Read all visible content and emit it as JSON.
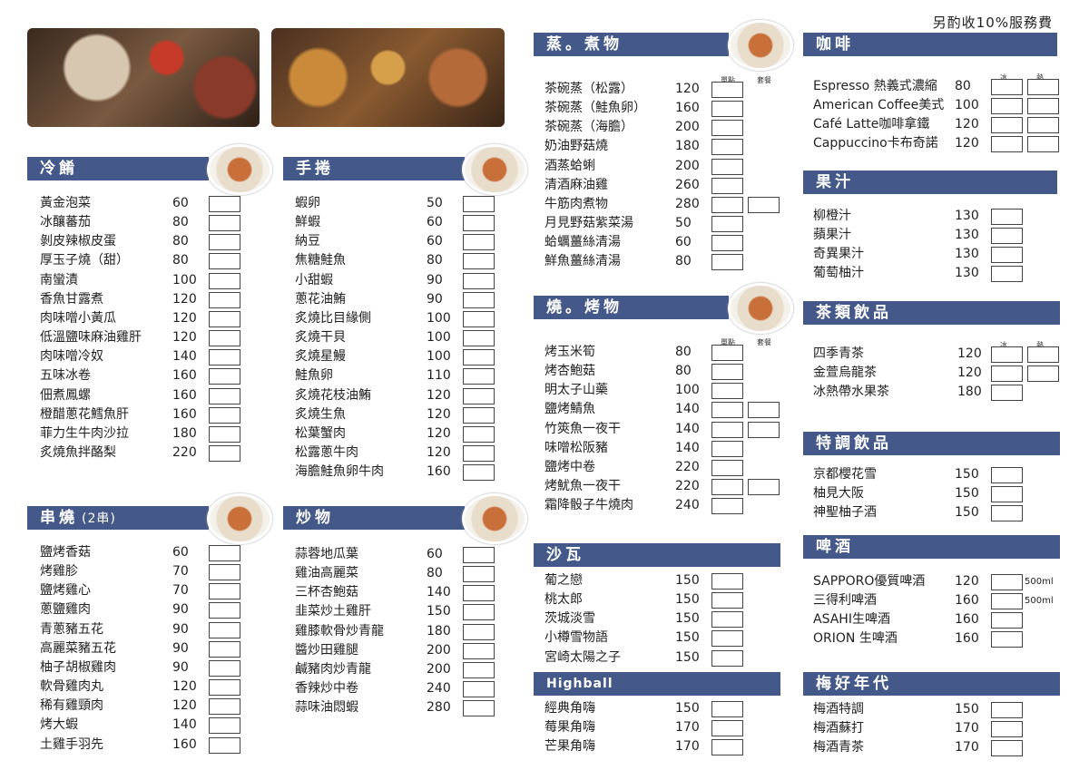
{
  "service_note": "另酌收10%服務費",
  "sections": [
    {
      "title": "冷餚",
      "items": [
        [
          "黃金泡菜",
          60
        ],
        [
          "冰釀蕃茄",
          80
        ],
        [
          "剝皮辣椒皮蛋",
          80
        ],
        [
          "厚玉子燒（甜）",
          80
        ],
        [
          "南蠻漬",
          100
        ],
        [
          "香魚甘露煮",
          120
        ],
        [
          "肉味噌小黃瓜",
          120
        ],
        [
          "低溫鹽味麻油雞肝",
          120
        ],
        [
          "肉味噌冷奴",
          140
        ],
        [
          "五味冰卷",
          160
        ],
        [
          "佃煮鳳螺",
          160
        ],
        [
          "橙醋蔥花鱈魚肝",
          160
        ],
        [
          "菲力生牛肉沙拉",
          180
        ],
        [
          "炙燒魚拌酪梨",
          220
        ]
      ]
    },
    {
      "title": "串燒",
      "subtitle": "(2串)",
      "items": [
        [
          "鹽烤香菇",
          60
        ],
        [
          "烤雞胗",
          70
        ],
        [
          "鹽烤雞心",
          70
        ],
        [
          "蔥鹽雞肉",
          90
        ],
        [
          "青蔥豬五花",
          90
        ],
        [
          "高麗菜豬五花",
          90
        ],
        [
          "柚子胡椒雞肉",
          90
        ],
        [
          "軟骨雞肉丸",
          120
        ],
        [
          "稀有雞頸肉",
          120
        ],
        [
          "烤大蝦",
          140
        ],
        [
          "土雞手羽先",
          160
        ]
      ]
    },
    {
      "title": "手捲",
      "items": [
        [
          "蝦卵",
          50
        ],
        [
          "鮮蝦",
          60
        ],
        [
          "納豆",
          60
        ],
        [
          "焦糖鮭魚",
          80
        ],
        [
          "小甜蝦",
          90
        ],
        [
          "蔥花油鮪",
          90
        ],
        [
          "炙燒比目緣側",
          100
        ],
        [
          "炙燒干貝",
          100
        ],
        [
          "炙燒星鰻",
          100
        ],
        [
          "鮭魚卵",
          110
        ],
        [
          "炙燒花枝油鮪",
          120
        ],
        [
          "炙燒生魚",
          120
        ],
        [
          "松葉蟹肉",
          120
        ],
        [
          "松露蔥牛肉",
          120
        ],
        [
          "海膽鮭魚卵牛肉",
          160
        ]
      ]
    },
    {
      "title": "炒物",
      "items": [
        [
          "蒜蓉地瓜葉",
          60
        ],
        [
          "雞油高麗菜",
          80
        ],
        [
          "三杯杏鮑菇",
          140
        ],
        [
          "韭菜炒土雞肝",
          150
        ],
        [
          "雞膝軟骨炒青龍",
          180
        ],
        [
          "醬炒田雞腿",
          200
        ],
        [
          "鹹豬肉炒青龍",
          200
        ],
        [
          "香辣炒中卷",
          240
        ],
        [
          "蒜味油悶蝦",
          280
        ]
      ]
    },
    {
      "title": "蒸。煮物",
      "labels": [
        "單點",
        "套餐"
      ],
      "items": [
        [
          "茶碗蒸（松露）",
          120
        ],
        [
          "茶碗蒸（鮭魚卵）",
          160
        ],
        [
          "茶碗蒸（海膽）",
          200
        ],
        [
          "奶油野菇燒",
          180
        ],
        [
          "酒蒸蛤蜊",
          200
        ],
        [
          "清酒麻油雞",
          260
        ],
        [
          "牛筋肉煮物",
          280
        ],
        [
          "月見野菇紫菜湯",
          50
        ],
        [
          "蛤蠣薑絲清湯",
          60
        ],
        [
          "鮮魚薑絲清湯",
          80
        ]
      ]
    },
    {
      "title": "燒。烤物",
      "labels": [
        "單點",
        "套餐"
      ],
      "items": [
        [
          "烤玉米筍",
          80
        ],
        [
          "烤杏鮑菇",
          80
        ],
        [
          "明太子山藥",
          100
        ],
        [
          "鹽烤鯖魚",
          140
        ],
        [
          "竹筴魚一夜干",
          140
        ],
        [
          "味噌松阪豬",
          140
        ],
        [
          "鹽烤中卷",
          220
        ],
        [
          "烤魷魚一夜干",
          220
        ],
        [
          "霜降骰子牛燒肉",
          240
        ]
      ]
    },
    {
      "title": "沙瓦",
      "items": [
        [
          "葡之戀",
          150
        ],
        [
          "桃太郎",
          150
        ],
        [
          "茨城淡雪",
          150
        ],
        [
          "小樽雪物語",
          150
        ],
        [
          "宮崎太陽之子",
          150
        ]
      ]
    },
    {
      "title": "Highball",
      "items": [
        [
          "經典角嗨",
          150
        ],
        [
          "莓果角嗨",
          170
        ],
        [
          "芒果角嗨",
          170
        ]
      ]
    },
    {
      "title": "咖啡",
      "labels": [
        "冰",
        "熱"
      ],
      "items": [
        [
          "Espresso 熱義式濃縮",
          80
        ],
        [
          "American Coffee美式",
          100
        ],
        [
          "Café Latte咖啡拿鐵",
          120
        ],
        [
          "Cappuccino卡布奇諾",
          120
        ]
      ]
    },
    {
      "title": "果汁",
      "items": [
        [
          "柳橙汁",
          130
        ],
        [
          "蘋果汁",
          130
        ],
        [
          "奇異果汁",
          130
        ],
        [
          "葡萄柚汁",
          130
        ]
      ]
    },
    {
      "title": "茶類飲品",
      "labels": [
        "冰",
        "熱"
      ],
      "items": [
        [
          "四季青茶",
          120
        ],
        [
          "金萱烏龍茶",
          120
        ],
        [
          "冰熱帶水果茶",
          180
        ]
      ]
    },
    {
      "title": "特調飲品",
      "items": [
        [
          "京都櫻花雪",
          150
        ],
        [
          "柚見大阪",
          150
        ],
        [
          "神聖柚子酒",
          150
        ]
      ]
    },
    {
      "title": "啤酒",
      "items": [
        [
          "SAPPORO優質啤酒",
          120,
          "500ml"
        ],
        [
          "三得利啤酒",
          160,
          "500ml"
        ],
        [
          "ASAHI生啤酒",
          160
        ],
        [
          "ORION 生啤酒",
          160
        ]
      ]
    },
    {
      "title": "梅好年代",
      "items": [
        [
          "梅酒特調",
          150
        ],
        [
          "梅酒蘇打",
          170
        ],
        [
          "梅酒青茶",
          170
        ]
      ]
    }
  ]
}
